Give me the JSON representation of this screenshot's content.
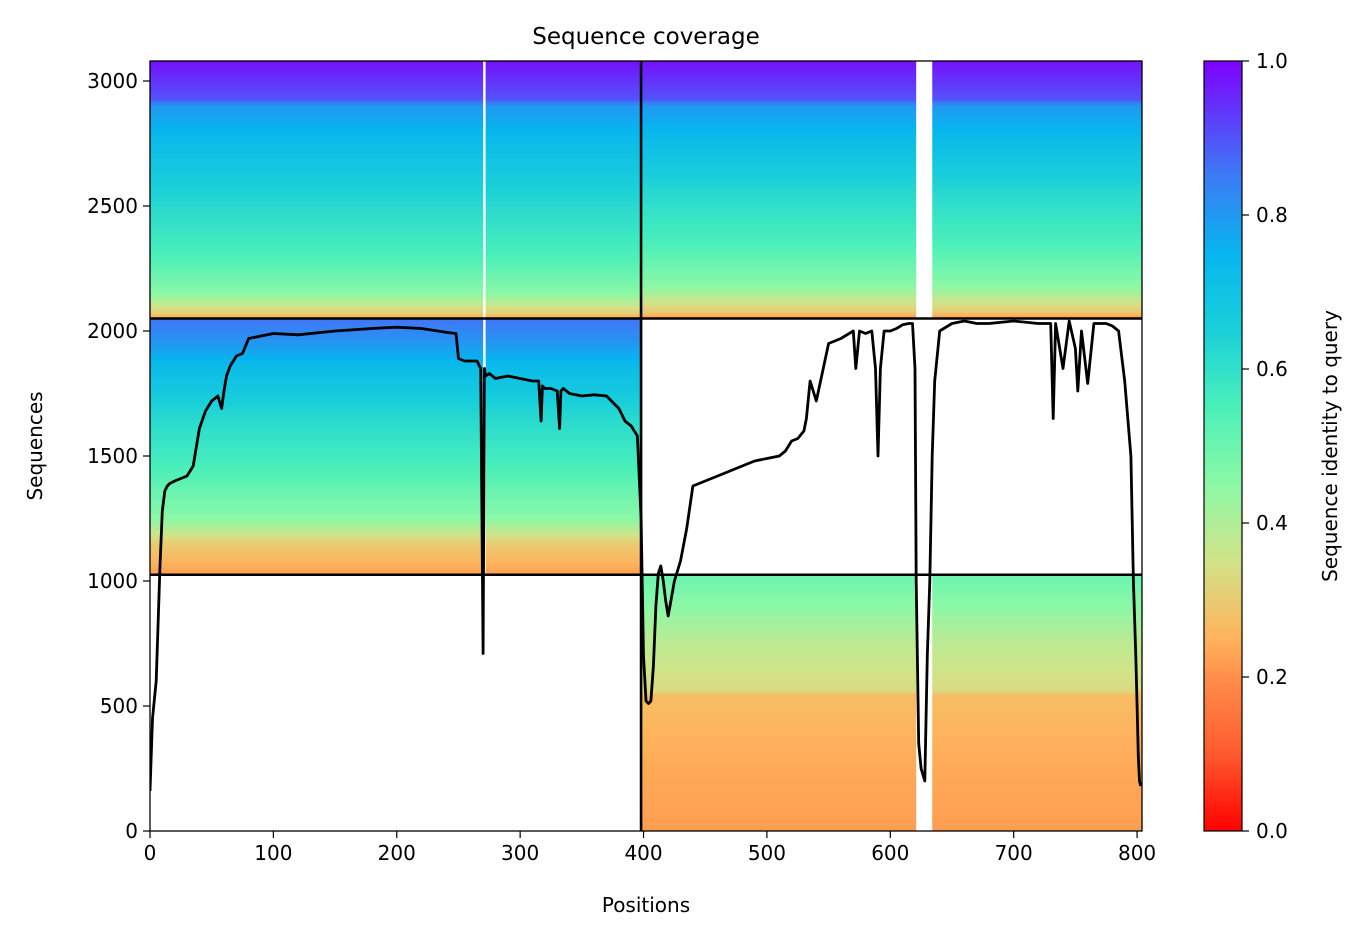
{
  "chart_data": {
    "type": "heatmap",
    "title": "Sequence coverage",
    "xlabel": "Positions",
    "ylabel": "Sequences",
    "colorbar_label": "Sequence identity to query",
    "xlim": [
      0,
      804
    ],
    "ylim": [
      0,
      3080
    ],
    "xticks": [
      0,
      100,
      200,
      300,
      400,
      500,
      600,
      700,
      800
    ],
    "yticks": [
      0,
      500,
      1000,
      1500,
      2000,
      2500,
      3000
    ],
    "colorbar_range": [
      0.0,
      1.0
    ],
    "colorbar_ticks": [
      "0.0",
      "0.2",
      "0.4",
      "0.6",
      "0.8",
      "1.0"
    ],
    "colormap": "rainbow_r",
    "grid": false,
    "domain_boundaries": {
      "x": [
        398
      ],
      "y": [
        1025,
        2050
      ]
    },
    "blocks": [
      {
        "x_range": [
          0,
          398
        ],
        "y_range": [
          2050,
          3080
        ],
        "identity_bands": [
          [
            2050,
            0.2
          ],
          [
            2070,
            0.3
          ],
          [
            2150,
            0.45
          ],
          [
            2300,
            0.55
          ],
          [
            2500,
            0.62
          ],
          [
            2750,
            0.72
          ],
          [
            2900,
            0.8
          ],
          [
            2930,
            0.9
          ],
          [
            3080,
            0.98
          ]
        ],
        "gaps": [
          [
            270,
            272
          ]
        ]
      },
      {
        "x_range": [
          398,
          804
        ],
        "y_range": [
          2050,
          3080
        ],
        "identity_bands": [
          [
            2050,
            0.2
          ],
          [
            2080,
            0.3
          ],
          [
            2180,
            0.45
          ],
          [
            2350,
            0.55
          ],
          [
            2550,
            0.62
          ],
          [
            2760,
            0.72
          ],
          [
            2900,
            0.8
          ],
          [
            2930,
            0.9
          ],
          [
            3080,
            0.98
          ]
        ],
        "gaps": [
          [
            621,
            634
          ]
        ]
      },
      {
        "x_range": [
          0,
          398
        ],
        "y_range": [
          1025,
          2050
        ],
        "identity_bands": [
          [
            1025,
            0.22
          ],
          [
            1150,
            0.3
          ],
          [
            1250,
            0.45
          ],
          [
            1450,
            0.55
          ],
          [
            1650,
            0.62
          ],
          [
            1850,
            0.72
          ],
          [
            1950,
            0.8
          ],
          [
            2050,
            0.86
          ]
        ],
        "gaps": [
          [
            270,
            272
          ]
        ]
      },
      {
        "x_range": [
          398,
          804
        ],
        "y_range": [
          0,
          1025
        ],
        "identity_bands": [
          [
            0,
            0.22
          ],
          [
            300,
            0.24
          ],
          [
            545,
            0.27
          ],
          [
            560,
            0.33
          ],
          [
            750,
            0.38
          ],
          [
            900,
            0.45
          ],
          [
            1025,
            0.5
          ]
        ],
        "gaps": [
          [
            621,
            634
          ]
        ]
      }
    ],
    "series": [
      {
        "name": "",
        "color": "#000000",
        "x": [
          0,
          2,
          5,
          8,
          10,
          12,
          14,
          16,
          20,
          25,
          30,
          35,
          40,
          45,
          50,
          55,
          58,
          60,
          62,
          65,
          70,
          75,
          80,
          90,
          100,
          120,
          150,
          180,
          200,
          220,
          240,
          248,
          250,
          255,
          260,
          265,
          268,
          270,
          271,
          272,
          275,
          280,
          290,
          300,
          310,
          315,
          317,
          318,
          320,
          325,
          330,
          332,
          333,
          335,
          340,
          350,
          360,
          370,
          380,
          385,
          390,
          395,
          398,
          400,
          402,
          404,
          406,
          408,
          410,
          412,
          414,
          416,
          418,
          420,
          425,
          430,
          435,
          440,
          450,
          460,
          470,
          480,
          490,
          500,
          510,
          515,
          520,
          525,
          530,
          532,
          535,
          540,
          550,
          560,
          570,
          572,
          575,
          580,
          585,
          588,
          590,
          592,
          595,
          600,
          605,
          610,
          615,
          618,
          620,
          621,
          623,
          625,
          628,
          630,
          632,
          634,
          636,
          640,
          650,
          660,
          670,
          680,
          700,
          720,
          730,
          732,
          734,
          740,
          745,
          750,
          752,
          755,
          760,
          765,
          770,
          775,
          780,
          785,
          790,
          795,
          797,
          799,
          800,
          801,
          802,
          803
        ],
        "y": [
          160,
          450,
          600,
          1050,
          1280,
          1360,
          1380,
          1390,
          1400,
          1410,
          1420,
          1460,
          1610,
          1680,
          1720,
          1740,
          1690,
          1760,
          1820,
          1860,
          1900,
          1910,
          1970,
          1980,
          1990,
          1985,
          2000,
          2010,
          2015,
          2010,
          1995,
          1990,
          1890,
          1880,
          1880,
          1880,
          1850,
          710,
          1850,
          1820,
          1830,
          1810,
          1820,
          1810,
          1800,
          1800,
          1640,
          1780,
          1770,
          1770,
          1760,
          1610,
          1760,
          1770,
          1750,
          1740,
          1745,
          1740,
          1690,
          1640,
          1620,
          1580,
          1250,
          700,
          520,
          510,
          520,
          660,
          900,
          1030,
          1060,
          1000,
          920,
          860,
          1000,
          1080,
          1210,
          1380,
          1400,
          1420,
          1440,
          1460,
          1480,
          1490,
          1500,
          1520,
          1560,
          1570,
          1600,
          1650,
          1800,
          1720,
          1950,
          1970,
          2000,
          1850,
          2000,
          1990,
          2000,
          1850,
          1500,
          1850,
          2000,
          2000,
          2010,
          2025,
          2030,
          2030,
          1850,
          1000,
          350,
          250,
          200,
          700,
          1000,
          1500,
          1800,
          2000,
          2030,
          2040,
          2030,
          2030,
          2040,
          2030,
          2030,
          1650,
          2030,
          1850,
          2040,
          1930,
          1760,
          2000,
          1790,
          2030,
          2030,
          2030,
          2020,
          2000,
          1800,
          1500,
          1000,
          700,
          500,
          300,
          200,
          180
        ]
      }
    ]
  }
}
